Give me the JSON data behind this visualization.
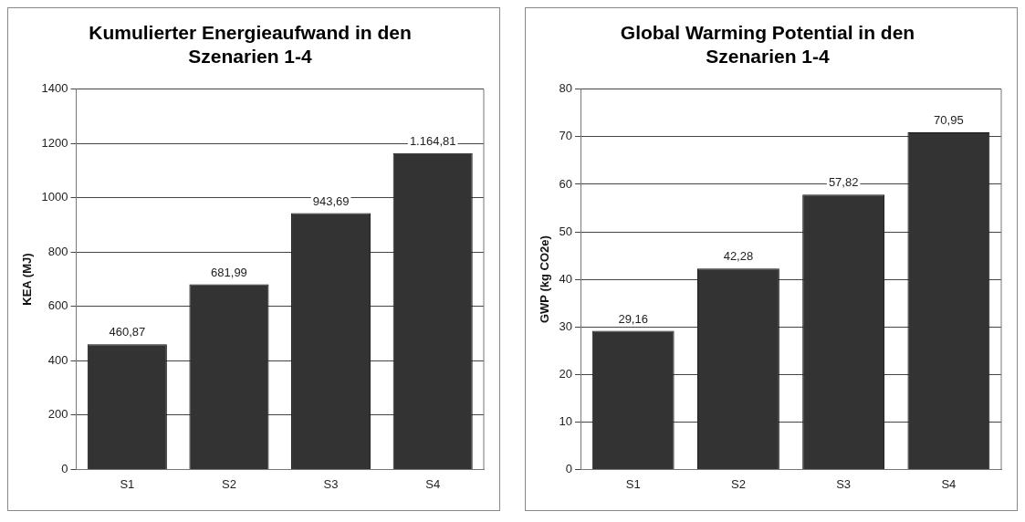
{
  "chart_data": [
    {
      "type": "bar",
      "title": "Kumulierter Energieaufwand in den Szenarien 1-4",
      "ylabel": "KEA (MJ)",
      "categories": [
        "S1",
        "S2",
        "S3",
        "S4"
      ],
      "values": [
        460.87,
        681.99,
        943.69,
        1164.81
      ],
      "value_labels": [
        "460,87",
        "681,99",
        "943,69",
        "1.164,81"
      ],
      "color": "#333333",
      "ylim": [
        0,
        1400
      ],
      "yticks": [
        0,
        200,
        400,
        600,
        800,
        1000,
        1200,
        1400
      ],
      "grid": "y",
      "legend": false
    },
    {
      "type": "bar",
      "title": "Global Warming Potential in den Szenarien 1-4",
      "ylabel": "GWP (kg CO2e)",
      "categories": [
        "S1",
        "S2",
        "S3",
        "S4"
      ],
      "values": [
        29.16,
        42.28,
        57.82,
        70.95
      ],
      "value_labels": [
        "29,16",
        "42,28",
        "57,82",
        "70,95"
      ],
      "color": "#333333",
      "ylim": [
        0,
        80
      ],
      "yticks": [
        0,
        10,
        20,
        30,
        40,
        50,
        60,
        70,
        80
      ],
      "grid": "y",
      "legend": false
    }
  ]
}
